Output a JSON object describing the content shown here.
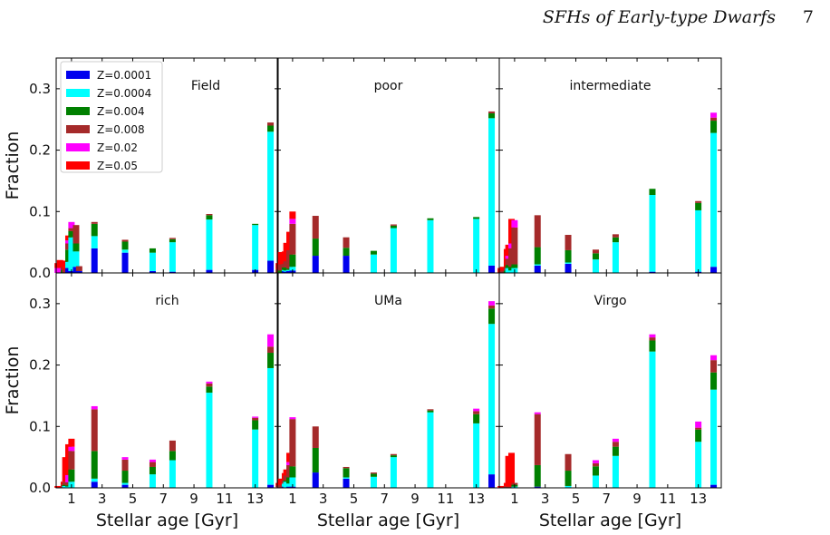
{
  "header": {
    "running_title": "SFHs of Early-type Dwarfs",
    "page_number": "7"
  },
  "chart_data": {
    "type": "bar",
    "stacked": true,
    "xlabel": "Stellar age [Gyr]",
    "ylabel": "Fraction",
    "xticks": [
      "1",
      "3",
      "5",
      "7",
      "9",
      "11",
      "13"
    ],
    "yticks": [
      "0.0",
      "0.1",
      "0.2",
      "0.3"
    ],
    "xlim": [
      0,
      14.5
    ],
    "ylim": [
      0,
      0.35
    ],
    "legend": {
      "placement": "top-left of first panel",
      "entries": [
        "Z=0.0001",
        "Z=0.0004",
        "Z=0.004",
        "Z=0.008",
        "Z=0.02",
        "Z=0.05"
      ]
    },
    "series_colors": [
      "#0000ee",
      "#00ffff",
      "#008000",
      "#a52a2a",
      "#ff00ff",
      "#ff0000"
    ],
    "age_bins": [
      0.1,
      0.25,
      0.5,
      0.6,
      0.8,
      1.0,
      1.3,
      1.5,
      2.5,
      4.5,
      6.3,
      7.6,
      10.0,
      13.0,
      14.0
    ],
    "panels": [
      {
        "name": "Field",
        "stacks": [
          [
            0,
            0,
            0,
            0,
            0.008,
            0.008
          ],
          [
            0,
            0,
            0,
            0,
            0.008,
            0.013
          ],
          [
            0,
            0,
            0.005,
            0.005,
            0,
            0.01
          ],
          [
            0,
            0,
            0,
            0.005,
            0,
            0.005
          ],
          [
            0.008,
            0.01,
            0.02,
            0.01,
            0.005,
            0.008
          ],
          [
            0.003,
            0.055,
            0.01,
            0.005,
            0.01,
            0
          ],
          [
            0.01,
            0.025,
            0.013,
            0.03,
            0,
            0
          ],
          [
            0.003,
            0,
            0,
            0.008,
            0,
            0
          ],
          [
            0.04,
            0.02,
            0.02,
            0.003,
            0,
            0
          ],
          [
            0.033,
            0.005,
            0.013,
            0.003,
            0,
            0
          ],
          [
            0.003,
            0.03,
            0.007,
            0,
            0,
            0
          ],
          [
            0.002,
            0.048,
            0.005,
            0.002,
            0,
            0
          ],
          [
            0.005,
            0.082,
            0.007,
            0.002,
            0,
            0
          ],
          [
            0.005,
            0.073,
            0.002,
            0,
            0,
            0
          ],
          [
            0.02,
            0.21,
            0.01,
            0.005,
            0,
            0
          ]
        ]
      },
      {
        "name": "poor",
        "stacks": [
          [
            0,
            0,
            0,
            0.006,
            0,
            0.01
          ],
          [
            0,
            0,
            0.004,
            0.01,
            0,
            0.02
          ],
          [
            0.003,
            0.002,
            0.004,
            0.006,
            0,
            0.02
          ],
          [
            0.002,
            0.002,
            0.005,
            0.01,
            0,
            0.03
          ],
          [
            0.003,
            0.002,
            0.002,
            0.03,
            0,
            0.03
          ],
          [
            0.004,
            0.006,
            0.02,
            0.05,
            0.008,
            0.012
          ],
          [
            0,
            0,
            0,
            0,
            0,
            0
          ],
          [
            0,
            0,
            0,
            0,
            0,
            0
          ],
          [
            0.028,
            0,
            0.028,
            0.037,
            0,
            0
          ],
          [
            0.028,
            0,
            0.013,
            0.017,
            0,
            0
          ],
          [
            0,
            0.03,
            0.006,
            0,
            0,
            0
          ],
          [
            0,
            0.073,
            0.004,
            0.002,
            0,
            0
          ],
          [
            0,
            0.086,
            0.003,
            0,
            0,
            0
          ],
          [
            0,
            0.088,
            0.003,
            0,
            0,
            0
          ],
          [
            0.012,
            0.24,
            0.008,
            0.003,
            0,
            0
          ]
        ]
      },
      {
        "name": "intermediate",
        "stacks": [
          [
            0,
            0,
            0,
            0,
            0,
            0.008
          ],
          [
            0,
            0,
            0,
            0.004,
            0,
            0.006
          ],
          [
            0,
            0,
            0.004,
            0.005,
            0,
            0.03
          ],
          [
            0,
            0.008,
            0.005,
            0.01,
            0.005,
            0.018
          ],
          [
            0,
            0.004,
            0.006,
            0.03,
            0.008,
            0.04
          ],
          [
            0,
            0.008,
            0.006,
            0.06,
            0.012,
            0
          ],
          [
            0,
            0,
            0,
            0,
            0,
            0
          ],
          [
            0,
            0,
            0,
            0,
            0,
            0
          ],
          [
            0.012,
            0.002,
            0.028,
            0.052,
            0,
            0
          ],
          [
            0.015,
            0.002,
            0.02,
            0.025,
            0,
            0
          ],
          [
            0,
            0.022,
            0.01,
            0.006,
            0,
            0
          ],
          [
            0,
            0.05,
            0.008,
            0.005,
            0,
            0
          ],
          [
            0.002,
            0.125,
            0.01,
            0,
            0,
            0
          ],
          [
            0.002,
            0.1,
            0.012,
            0.003,
            0,
            0
          ],
          [
            0.01,
            0.218,
            0.02,
            0.005,
            0.008,
            0
          ]
        ]
      },
      {
        "name": "rich",
        "stacks": [
          [
            0,
            0,
            0,
            0,
            0,
            0.003
          ],
          [
            0,
            0,
            0,
            0,
            0,
            0.003
          ],
          [
            0,
            0,
            0,
            0.005,
            0,
            0.005
          ],
          [
            0,
            0.003,
            0.002,
            0.005,
            0,
            0.04
          ],
          [
            0,
            0.002,
            0.002,
            0.005,
            0.012,
            0.05
          ],
          [
            0,
            0.01,
            0.02,
            0.03,
            0.007,
            0.013
          ],
          [
            0,
            0,
            0,
            0,
            0,
            0
          ],
          [
            0,
            0,
            0,
            0,
            0,
            0
          ],
          [
            0.01,
            0.005,
            0.045,
            0.068,
            0.005,
            0
          ],
          [
            0.005,
            0.003,
            0.02,
            0.018,
            0.004,
            0
          ],
          [
            0,
            0.022,
            0.012,
            0.008,
            0.004,
            0
          ],
          [
            0,
            0.045,
            0.015,
            0.017,
            0,
            0
          ],
          [
            0,
            0.155,
            0.01,
            0.005,
            0.003,
            0
          ],
          [
            0,
            0.095,
            0.015,
            0.004,
            0.002,
            0
          ],
          [
            0.005,
            0.19,
            0.025,
            0.01,
            0.02,
            0
          ]
        ]
      },
      {
        "name": "UMa",
        "stacks": [
          [
            0,
            0,
            0,
            0.003,
            0,
            0.005
          ],
          [
            0,
            0,
            0,
            0.005,
            0,
            0.01
          ],
          [
            0.002,
            0.005,
            0,
            0.005,
            0,
            0.012
          ],
          [
            0,
            0.01,
            0.002,
            0.008,
            0,
            0.01
          ],
          [
            0.002,
            0.005,
            0.01,
            0.02,
            0.005,
            0.015
          ],
          [
            0.002,
            0.015,
            0.018,
            0.077,
            0.003,
            0
          ],
          [
            0,
            0,
            0,
            0,
            0,
            0
          ],
          [
            0,
            0,
            0,
            0,
            0,
            0
          ],
          [
            0.025,
            0,
            0.04,
            0.035,
            0,
            0
          ],
          [
            0.015,
            0.002,
            0.015,
            0.002,
            0,
            0
          ],
          [
            0,
            0.018,
            0.005,
            0.002,
            0,
            0
          ],
          [
            0,
            0.05,
            0.003,
            0.002,
            0,
            0
          ],
          [
            0,
            0.123,
            0.003,
            0.002,
            0,
            0
          ],
          [
            0,
            0.105,
            0.015,
            0.005,
            0.004,
            0
          ],
          [
            0.022,
            0.245,
            0.025,
            0.005,
            0.007,
            0
          ]
        ]
      },
      {
        "name": "Virgo",
        "stacks": [
          [
            0,
            0,
            0,
            0,
            0,
            0.003
          ],
          [
            0,
            0,
            0,
            0,
            0,
            0.003
          ],
          [
            0,
            0,
            0,
            0.003,
            0,
            0.005
          ],
          [
            0,
            0,
            0,
            0.002,
            0,
            0.05
          ],
          [
            0,
            0,
            0,
            0.002,
            0,
            0.055
          ],
          [
            0,
            0.002,
            0.003,
            0.003,
            0,
            0
          ],
          [
            0,
            0,
            0,
            0,
            0,
            0
          ],
          [
            0,
            0,
            0,
            0,
            0,
            0
          ],
          [
            0.002,
            0,
            0.035,
            0.083,
            0.003,
            0
          ],
          [
            0,
            0.003,
            0.025,
            0.027,
            0,
            0
          ],
          [
            0,
            0.02,
            0.015,
            0.005,
            0.005,
            0
          ],
          [
            0,
            0.052,
            0.015,
            0.008,
            0.005,
            0
          ],
          [
            0,
            0.222,
            0.018,
            0.005,
            0.005,
            0
          ],
          [
            0,
            0.075,
            0.02,
            0.003,
            0.01,
            0
          ],
          [
            0.005,
            0.155,
            0.028,
            0.02,
            0.008,
            0
          ]
        ]
      }
    ]
  }
}
